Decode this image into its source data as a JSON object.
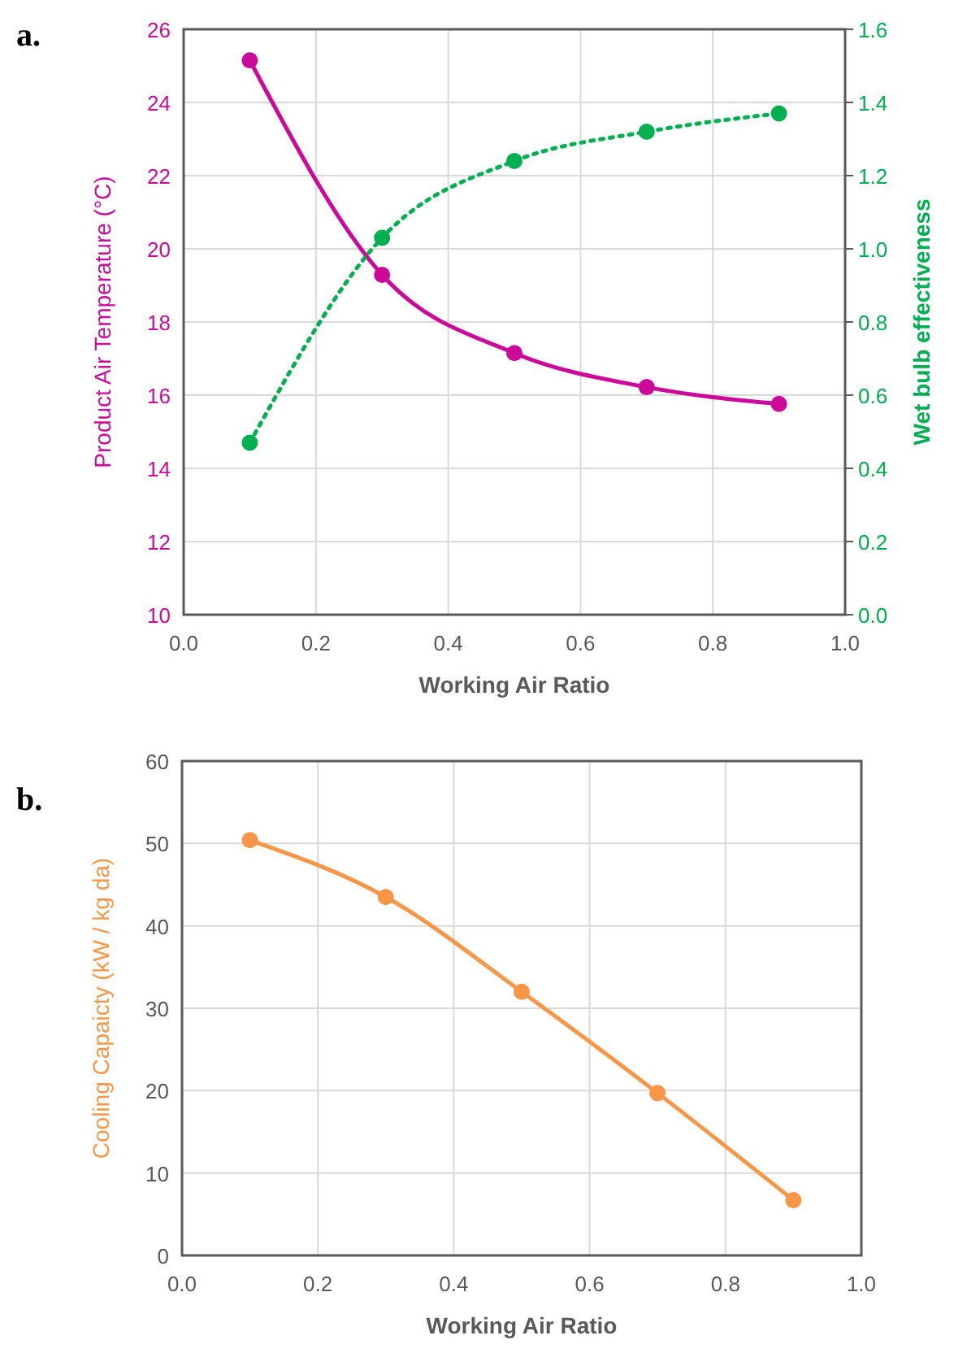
{
  "chart_data": [
    {
      "type": "line",
      "title": "a.",
      "xlabel": "Working Air Ratio",
      "ylabel": "Product Air Temperature (°C)",
      "y2label": "Wet bulb effectiveness",
      "x": [
        0.1,
        0.3,
        0.5,
        0.7,
        0.9
      ],
      "series": [
        {
          "color": "#cc0a99",
          "values": [
            25.15,
            19.29,
            17.15,
            16.22,
            15.76
          ],
          "line_style": "solid"
        },
        {
          "color": "#00b050",
          "values": [
            0.47,
            1.03,
            1.24,
            1.32,
            1.37
          ],
          "axis": "y2",
          "line_style": "dotted"
        }
      ],
      "xlim": [
        0,
        1
      ],
      "xticks": [
        {
          "value": 0,
          "label": "0.0"
        },
        {
          "value": 0.2,
          "label": "0.2"
        },
        {
          "value": 0.4,
          "label": "0.4"
        },
        {
          "value": 0.6,
          "label": "0.6"
        },
        {
          "value": 0.8,
          "label": "0.8"
        },
        {
          "value": 1,
          "label": "1.0"
        }
      ],
      "ylim": [
        10,
        26
      ],
      "yticks": [
        10,
        12,
        14,
        16,
        18,
        20,
        22,
        24,
        26
      ],
      "y2lim": [
        0,
        1.6
      ],
      "y2ticks": [
        {
          "value": 0,
          "label": "0.0"
        },
        {
          "value": 0.2,
          "label": "0.2"
        },
        {
          "value": 0.4,
          "label": "0.4"
        },
        {
          "value": 0.6,
          "label": "0.6"
        },
        {
          "value": 0.8,
          "label": "0.8"
        },
        {
          "value": 1,
          "label": "1.0"
        },
        {
          "value": 1.2,
          "label": "1.2"
        },
        {
          "value": 1.4,
          "label": "1.4"
        },
        {
          "value": 1.6,
          "label": "1.6"
        }
      ],
      "grid": true,
      "marker": "circle"
    },
    {
      "type": "line",
      "title": "b.",
      "xlabel": "Working Air Ratio",
      "ylabel": "Cooling Capaicty (kW / kg da)",
      "x": [
        0.1,
        0.3,
        0.5,
        0.7,
        0.9
      ],
      "series": [
        {
          "color": "#f79646",
          "values": [
            50.4,
            43.5,
            32.0,
            19.7,
            6.7
          ],
          "line_style": "solid"
        }
      ],
      "xlim": [
        0,
        1
      ],
      "xticks": [
        {
          "value": 0,
          "label": "0.0"
        },
        {
          "value": 0.2,
          "label": "0.2"
        },
        {
          "value": 0.4,
          "label": "0.4"
        },
        {
          "value": 0.6,
          "label": "0.6"
        },
        {
          "value": 0.8,
          "label": "0.8"
        },
        {
          "value": 1,
          "label": "1.0"
        }
      ],
      "ylim": [
        0,
        60
      ],
      "yticks": [
        0,
        10,
        20,
        30,
        40,
        50,
        60
      ],
      "grid": true,
      "marker": "circle"
    }
  ]
}
